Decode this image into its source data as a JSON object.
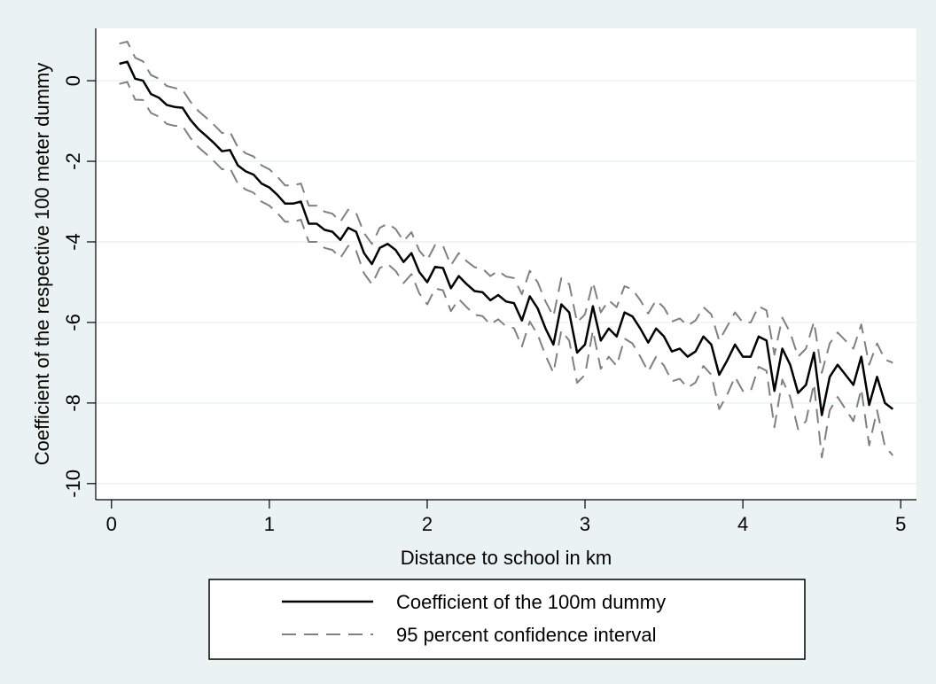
{
  "chart_data": {
    "type": "line",
    "xlabel": "Distance to school in km",
    "ylabel": "Coefficient of the respective 100 meter dummy",
    "xlim": [
      -0.1,
      5.1
    ],
    "ylim": [
      -10.4,
      1.3
    ],
    "xticks": [
      0,
      1,
      2,
      3,
      4,
      5
    ],
    "yticks": [
      0,
      -2,
      -4,
      -6,
      -8,
      -10
    ],
    "grid": "horizontal",
    "legend_position": "bottom",
    "x": [
      0.05,
      0.1,
      0.15,
      0.2,
      0.25,
      0.3,
      0.35,
      0.4,
      0.45,
      0.5,
      0.55,
      0.6,
      0.65,
      0.7,
      0.75,
      0.8,
      0.85,
      0.9,
      0.95,
      1.0,
      1.05,
      1.1,
      1.15,
      1.2,
      1.25,
      1.3,
      1.35,
      1.4,
      1.45,
      1.5,
      1.55,
      1.6,
      1.65,
      1.7,
      1.75,
      1.8,
      1.85,
      1.9,
      1.95,
      2.0,
      2.05,
      2.1,
      2.15,
      2.2,
      2.25,
      2.3,
      2.35,
      2.4,
      2.45,
      2.5,
      2.55,
      2.6,
      2.65,
      2.7,
      2.75,
      2.8,
      2.85,
      2.9,
      2.95,
      3.0,
      3.05,
      3.1,
      3.15,
      3.2,
      3.25,
      3.3,
      3.35,
      3.4,
      3.45,
      3.5,
      3.55,
      3.6,
      3.65,
      3.7,
      3.75,
      3.8,
      3.85,
      3.9,
      3.95,
      4.0,
      4.05,
      4.1,
      4.15,
      4.2,
      4.25,
      4.3,
      4.35,
      4.4,
      4.45,
      4.5,
      4.55,
      4.6,
      4.65,
      4.7,
      4.75,
      4.8,
      4.85,
      4.9,
      4.95
    ],
    "series": [
      {
        "name": "Coefficient of the 100m dummy",
        "color": "#000000",
        "dash": "solid",
        "values": [
          0.42,
          0.47,
          0.05,
          0.0,
          -0.33,
          -0.42,
          -0.6,
          -0.65,
          -0.67,
          -0.97,
          -1.2,
          -1.37,
          -1.55,
          -1.75,
          -1.72,
          -2.1,
          -2.25,
          -2.33,
          -2.55,
          -2.65,
          -2.83,
          -3.05,
          -3.05,
          -3.0,
          -3.55,
          -3.55,
          -3.7,
          -3.75,
          -3.95,
          -3.65,
          -3.75,
          -4.28,
          -4.55,
          -4.15,
          -4.05,
          -4.2,
          -4.5,
          -4.28,
          -4.75,
          -5.0,
          -4.62,
          -4.65,
          -5.15,
          -4.85,
          -5.05,
          -5.22,
          -5.25,
          -5.45,
          -5.32,
          -5.48,
          -5.52,
          -5.95,
          -5.35,
          -5.65,
          -6.15,
          -6.55,
          -5.55,
          -5.75,
          -6.75,
          -6.55,
          -5.6,
          -6.45,
          -6.15,
          -6.35,
          -5.75,
          -5.85,
          -6.15,
          -6.5,
          -6.15,
          -6.35,
          -6.72,
          -6.65,
          -6.85,
          -6.72,
          -6.35,
          -6.55,
          -7.3,
          -6.95,
          -6.55,
          -6.85,
          -6.85,
          -6.35,
          -6.45,
          -7.7,
          -6.65,
          -7.05,
          -7.75,
          -7.55,
          -6.75,
          -8.3,
          -7.35,
          -7.05,
          -7.3,
          -7.55,
          -6.85,
          -8.05,
          -7.35,
          -8.0,
          -8.15
        ]
      },
      {
        "name": "95 percent confidence interval",
        "color": "#808080",
        "dash": "dashed",
        "values": [
          0.92,
          0.97,
          0.57,
          0.48,
          0.14,
          0.05,
          -0.13,
          -0.18,
          -0.22,
          -0.52,
          -0.75,
          -0.92,
          -1.1,
          -1.3,
          -1.27,
          -1.65,
          -1.8,
          -1.88,
          -2.1,
          -2.2,
          -2.38,
          -2.6,
          -2.6,
          -2.55,
          -3.1,
          -3.1,
          -3.25,
          -3.3,
          -3.5,
          -3.2,
          -3.28,
          -3.78,
          -4.05,
          -3.65,
          -3.55,
          -3.68,
          -3.98,
          -3.76,
          -4.22,
          -4.45,
          -4.08,
          -4.1,
          -4.58,
          -4.28,
          -4.48,
          -4.63,
          -4.66,
          -4.85,
          -4.72,
          -4.86,
          -4.9,
          -5.3,
          -4.72,
          -5.0,
          -5.48,
          -5.85,
          -4.9,
          -5.05,
          -6.0,
          -5.8,
          -5.0,
          -5.75,
          -5.45,
          -5.62,
          -5.1,
          -5.18,
          -5.45,
          -5.78,
          -5.45,
          -5.63,
          -5.98,
          -5.9,
          -6.08,
          -5.95,
          -5.62,
          -5.8,
          -6.45,
          -6.1,
          -5.75,
          -6.0,
          -6.0,
          -5.6,
          -5.7,
          -6.8,
          -5.88,
          -6.25,
          -6.85,
          -6.65,
          -5.98,
          -7.25,
          -6.52,
          -6.25,
          -6.45,
          -6.65,
          -6.05,
          -7.05,
          -6.52,
          -6.92,
          -7.0
        ]
      },
      {
        "name": "",
        "color": "#808080",
        "dash": "dashed",
        "values": [
          -0.08,
          -0.03,
          -0.47,
          -0.48,
          -0.8,
          -0.89,
          -1.07,
          -1.12,
          -1.12,
          -1.42,
          -1.65,
          -1.82,
          -2.0,
          -2.2,
          -2.17,
          -2.55,
          -2.7,
          -2.78,
          -3.0,
          -3.1,
          -3.28,
          -3.5,
          -3.5,
          -3.45,
          -4.0,
          -4.0,
          -4.15,
          -4.2,
          -4.4,
          -4.1,
          -4.22,
          -4.78,
          -5.05,
          -4.65,
          -4.55,
          -4.72,
          -5.02,
          -4.8,
          -5.28,
          -5.55,
          -5.16,
          -5.2,
          -5.72,
          -5.42,
          -5.62,
          -5.81,
          -5.84,
          -6.05,
          -5.92,
          -6.1,
          -6.14,
          -6.6,
          -5.98,
          -6.3,
          -6.82,
          -7.25,
          -6.2,
          -6.45,
          -7.5,
          -7.3,
          -6.2,
          -7.15,
          -6.85,
          -7.08,
          -6.4,
          -6.52,
          -6.85,
          -7.22,
          -6.85,
          -7.07,
          -7.46,
          -7.4,
          -7.62,
          -7.49,
          -7.08,
          -7.3,
          -8.15,
          -7.8,
          -7.35,
          -7.7,
          -7.7,
          -7.1,
          -7.2,
          -8.6,
          -7.42,
          -7.85,
          -8.65,
          -8.45,
          -7.52,
          -9.35,
          -8.18,
          -7.85,
          -8.15,
          -8.45,
          -7.65,
          -9.05,
          -8.18,
          -9.08,
          -9.3
        ]
      }
    ]
  },
  "legend": {
    "items": [
      {
        "label": "Coefficient of the 100m dummy",
        "color": "#000000",
        "dash": "solid"
      },
      {
        "label": "95 percent confidence interval",
        "color": "#808080",
        "dash": "dashed"
      }
    ]
  }
}
